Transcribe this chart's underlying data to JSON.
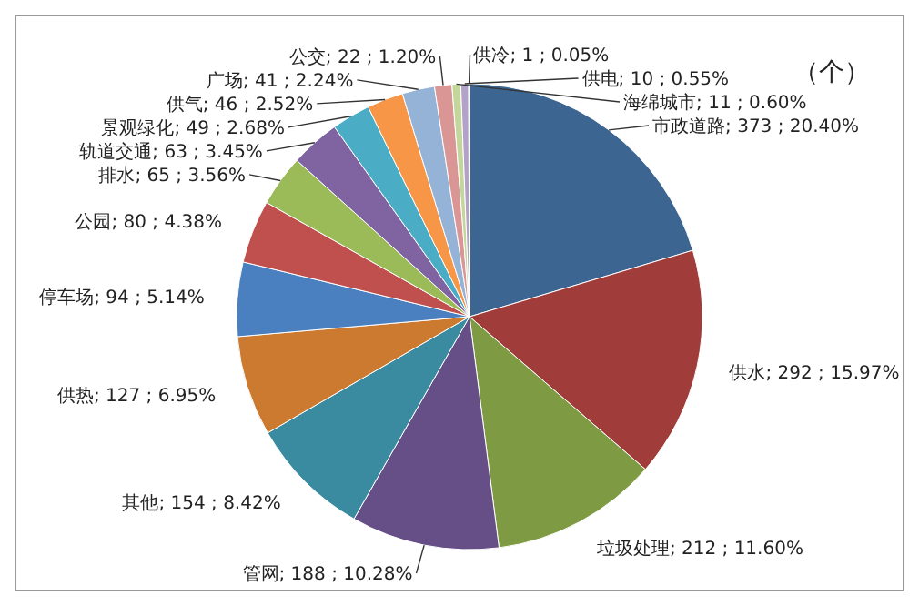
{
  "chart_data": {
    "type": "pie",
    "annotations": [
      "（个）"
    ],
    "categories": [
      "市政道路",
      "供水",
      "垃圾处理",
      "管网",
      "其他",
      "供热",
      "停车场",
      "公园",
      "排水",
      "轨道交通",
      "景观绿化",
      "供气",
      "广场",
      "公交",
      "海绵城市",
      "供电",
      "供冷"
    ],
    "values": [
      373,
      292,
      212,
      188,
      154,
      127,
      94,
      80,
      65,
      63,
      49,
      46,
      41,
      22,
      11,
      10,
      1
    ],
    "value_labels": [
      "373 ; 20.40%",
      "292 ; 15.97%",
      "212 ; 11.60%",
      "188 ; 10.28%",
      "154 ; 8.42%",
      "127 ; 6.95%",
      "94 ; 5.14%",
      "80 ; 4.38%",
      "65 ; 3.56%",
      "63 ; 3.45%",
      "49 ; 2.68%",
      "46 ; 2.52%",
      "41 ; 2.24%",
      "22 ; 1.20%",
      "11 ; 0.60%",
      "10 ; 0.55%",
      "1 ; 0.05%"
    ],
    "colors": [
      "#3d6591",
      "#a03d3b",
      "#7e9a42",
      "#664f86",
      "#3a8ba0",
      "#cc7a30",
      "#4a7fc0",
      "#c0504d",
      "#9bbb59",
      "#8064a2",
      "#4bacc6",
      "#f79646",
      "#95b3d7",
      "#d99694",
      "#c3d69b",
      "#b3a2c7",
      "#93cddd"
    ]
  }
}
